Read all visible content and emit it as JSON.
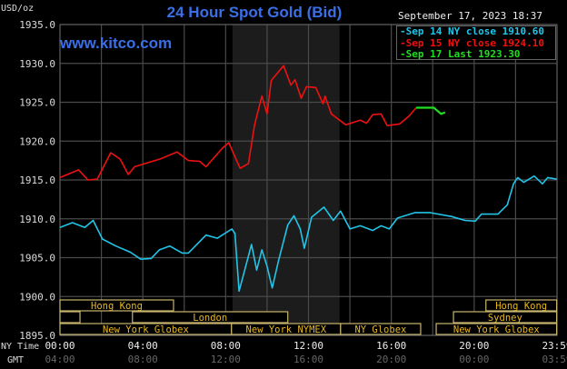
{
  "chart_data": {
    "type": "line",
    "title": "24 Hour Spot Gold (Bid)",
    "website": "www.kitco.com",
    "ylabel": "USD/oz",
    "timestamp": "September 17, 2023 18:37",
    "ylim": [
      1895,
      1935
    ],
    "y_ticks": [
      "1935.0",
      "1930.0",
      "1925.0",
      "1920.0",
      "1915.0",
      "1910.0",
      "1905.0",
      "1900.0",
      "1895.0"
    ],
    "x_axis_label_ny": "NY Time",
    "x_axis_label_gmt": "GMT",
    "x_ticks_ny": [
      "00:00",
      "04:00",
      "08:00",
      "12:00",
      "16:00",
      "20:00",
      "23:59"
    ],
    "x_ticks_gmt": [
      "04:00",
      "08:00",
      "12:00",
      "16:00",
      "20:00",
      "00:00",
      "03:59"
    ],
    "grid": true,
    "legend_position": "top-right",
    "shaded_period": {
      "start": "08:20",
      "end": "13:30"
    },
    "series": [
      {
        "name": "Sep 14 NY close 1910.60",
        "color": "#22c4e8",
        "points": [
          [
            "00:00",
            1908.9
          ],
          [
            "00:36",
            1909.5
          ],
          [
            "01:12",
            1908.9
          ],
          [
            "01:36",
            1909.8
          ],
          [
            "02:03",
            1907.4
          ],
          [
            "02:42",
            1906.5
          ],
          [
            "03:24",
            1905.7
          ],
          [
            "03:54",
            1904.8
          ],
          [
            "04:24",
            1904.9
          ],
          [
            "04:48",
            1906.0
          ],
          [
            "05:18",
            1906.5
          ],
          [
            "05:54",
            1905.6
          ],
          [
            "06:12",
            1905.6
          ],
          [
            "07:03",
            1907.9
          ],
          [
            "07:36",
            1907.5
          ],
          [
            "08:18",
            1908.7
          ],
          [
            "08:27",
            1908.1
          ],
          [
            "08:39",
            1900.7
          ],
          [
            "08:51",
            1902.7
          ],
          [
            "09:15",
            1906.7
          ],
          [
            "09:30",
            1903.4
          ],
          [
            "09:45",
            1906.0
          ],
          [
            "10:00",
            1903.9
          ],
          [
            "10:15",
            1901.1
          ],
          [
            "10:33",
            1904.6
          ],
          [
            "11:00",
            1909.2
          ],
          [
            "11:18",
            1910.4
          ],
          [
            "11:36",
            1908.7
          ],
          [
            "11:48",
            1906.2
          ],
          [
            "12:09",
            1910.2
          ],
          [
            "12:45",
            1911.5
          ],
          [
            "13:12",
            1909.8
          ],
          [
            "13:33",
            1911.0
          ],
          [
            "14:00",
            1908.7
          ],
          [
            "14:30",
            1909.1
          ],
          [
            "15:06",
            1908.5
          ],
          [
            "15:30",
            1909.1
          ],
          [
            "15:54",
            1908.7
          ],
          [
            "16:18",
            1910.1
          ],
          [
            "17:09",
            1910.8
          ],
          [
            "17:51",
            1910.8
          ],
          [
            "18:54",
            1910.3
          ],
          [
            "19:33",
            1909.8
          ],
          [
            "20:03",
            1909.7
          ],
          [
            "20:21",
            1910.6
          ],
          [
            "21:09",
            1910.6
          ],
          [
            "21:36",
            1911.8
          ],
          [
            "21:54",
            1914.5
          ],
          [
            "22:06",
            1915.3
          ],
          [
            "22:24",
            1914.7
          ],
          [
            "22:54",
            1915.5
          ],
          [
            "23:18",
            1914.5
          ],
          [
            "23:33",
            1915.3
          ],
          [
            "23:59",
            1915.1
          ]
        ]
      },
      {
        "name": "Sep 15 NY close 1924.10",
        "color": "#ee1111",
        "points": [
          [
            "00:00",
            1915.3
          ],
          [
            "00:54",
            1916.3
          ],
          [
            "01:21",
            1915.0
          ],
          [
            "01:48",
            1915.1
          ],
          [
            "02:27",
            1918.5
          ],
          [
            "02:54",
            1917.7
          ],
          [
            "03:18",
            1915.7
          ],
          [
            "03:36",
            1916.7
          ],
          [
            "04:06",
            1917.1
          ],
          [
            "04:51",
            1917.7
          ],
          [
            "05:39",
            1918.6
          ],
          [
            "06:12",
            1917.5
          ],
          [
            "06:45",
            1917.4
          ],
          [
            "07:03",
            1916.7
          ],
          [
            "07:51",
            1919.1
          ],
          [
            "08:09",
            1919.8
          ],
          [
            "08:30",
            1917.7
          ],
          [
            "08:42",
            1916.5
          ],
          [
            "09:06",
            1917.1
          ],
          [
            "09:24",
            1922.1
          ],
          [
            "09:45",
            1925.8
          ],
          [
            "10:00",
            1923.5
          ],
          [
            "10:12",
            1927.8
          ],
          [
            "10:48",
            1929.7
          ],
          [
            "11:09",
            1927.2
          ],
          [
            "11:21",
            1927.9
          ],
          [
            "11:39",
            1925.5
          ],
          [
            "11:54",
            1927.0
          ],
          [
            "12:21",
            1926.9
          ],
          [
            "12:42",
            1924.8
          ],
          [
            "12:48",
            1925.8
          ],
          [
            "13:06",
            1923.5
          ],
          [
            "13:48",
            1922.1
          ],
          [
            "14:30",
            1922.7
          ],
          [
            "14:48",
            1922.3
          ],
          [
            "15:06",
            1923.4
          ],
          [
            "15:30",
            1923.5
          ],
          [
            "15:48",
            1922.0
          ],
          [
            "16:24",
            1922.2
          ],
          [
            "16:51",
            1923.2
          ],
          [
            "17:12",
            1924.3
          ]
        ]
      },
      {
        "name": "Sep 17 Last 1923.30",
        "color": "#22dd22",
        "points": [
          [
            "17:12",
            1924.3
          ],
          [
            "17:36",
            1924.3
          ],
          [
            "18:03",
            1924.3
          ],
          [
            "18:24",
            1923.5
          ],
          [
            "18:36",
            1923.7
          ]
        ]
      }
    ],
    "sessions": [
      {
        "label": "Hong Kong",
        "row": 0,
        "start": "00:00",
        "end": "05:29"
      },
      {
        "label": "Hong Kong",
        "row": 0,
        "start": "20:34",
        "end": "23:59"
      },
      {
        "label": "",
        "row": 1,
        "start": "00:00",
        "end": "00:58"
      },
      {
        "label": "London",
        "row": 1,
        "start": "03:30",
        "end": "11:00"
      },
      {
        "label": "Sydney",
        "row": 1,
        "start": "19:00",
        "end": "23:59"
      },
      {
        "label": "New York Globex",
        "row": 2,
        "start": "00:00",
        "end": "08:17"
      },
      {
        "label": "New York NYMEX",
        "row": 2,
        "start": "08:17",
        "end": "13:33"
      },
      {
        "label": "NY Globex",
        "row": 2,
        "start": "13:33",
        "end": "17:25"
      },
      {
        "label": "New York Globex",
        "row": 2,
        "start": "18:10",
        "end": "23:59"
      }
    ]
  }
}
